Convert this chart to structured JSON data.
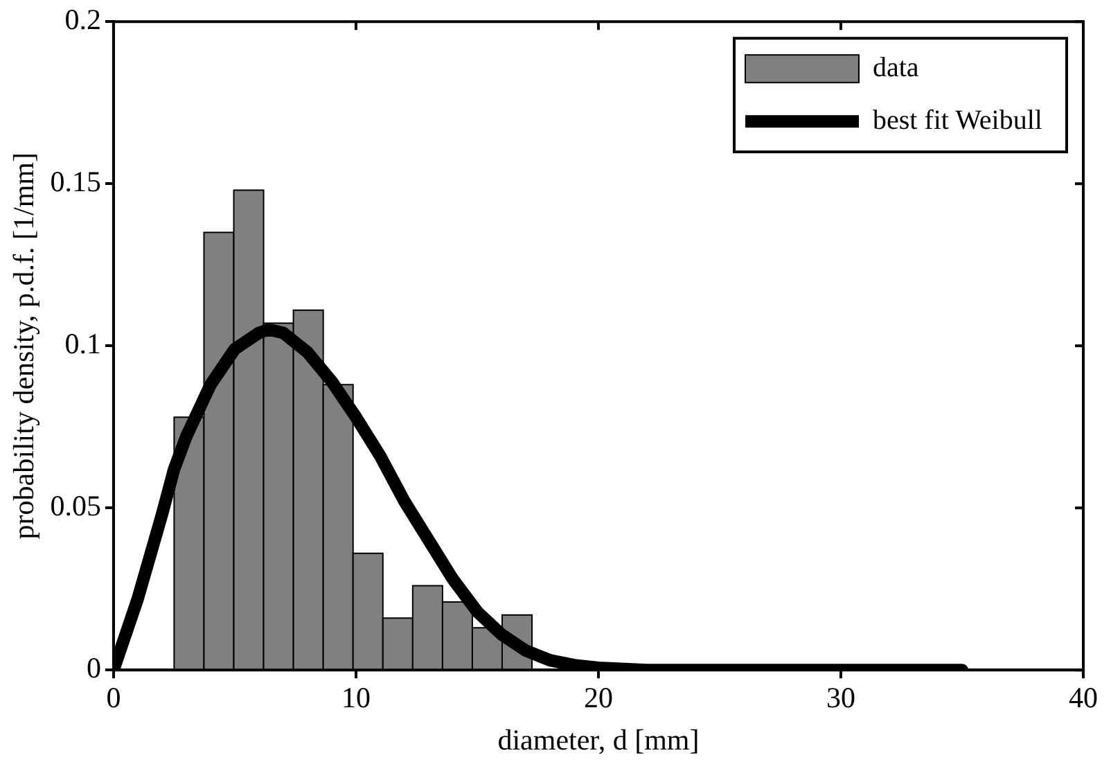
{
  "chart_data": {
    "type": "histogram",
    "xlabel": "diameter, d [mm]",
    "ylabel": "probability density, p.d.f. [1/mm]",
    "xlim": [
      0,
      40
    ],
    "xticks": [
      0,
      10,
      20,
      30,
      40
    ],
    "ylim": [
      0,
      0.2
    ],
    "yticks": [
      0,
      0.05,
      0.1,
      0.15,
      0.2
    ],
    "grid": false,
    "legend": "top right",
    "series": [
      {
        "name": "data",
        "color": "#808080",
        "bins": [
          2.5,
          3.73,
          4.96,
          6.19,
          7.42,
          8.65,
          9.88,
          11.11,
          12.34,
          13.57,
          14.8,
          16.03,
          17.26
        ],
        "values": [
          0.078,
          0.135,
          0.148,
          0.107,
          0.111,
          0.088,
          0.036,
          0.016,
          0.026,
          0.021,
          0.013,
          0.017
        ]
      },
      {
        "type": "line",
        "name": "best fit Weibull",
        "color": "#000000",
        "x": [
          0,
          1,
          2,
          2.5,
          3,
          4,
          5,
          6,
          6.4,
          7,
          8,
          9,
          10,
          11,
          12,
          13,
          14,
          15,
          16,
          17,
          18,
          19,
          20,
          22,
          35
        ],
        "values": [
          0,
          0.022,
          0.048,
          0.062,
          0.072,
          0.088,
          0.099,
          0.104,
          0.105,
          0.104,
          0.098,
          0.089,
          0.078,
          0.066,
          0.052,
          0.04,
          0.028,
          0.018,
          0.011,
          0.006,
          0.003,
          0.0015,
          0.0007,
          0,
          0
        ]
      }
    ]
  }
}
